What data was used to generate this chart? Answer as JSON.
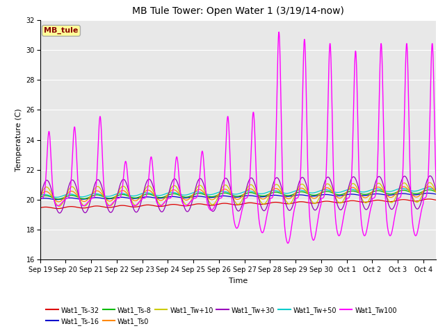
{
  "title": "MB Tule Tower: Open Water 1 (3/19/14-now)",
  "xlabel": "Time",
  "ylabel": "Temperature (C)",
  "ylim": [
    16,
    32
  ],
  "yticks": [
    16,
    18,
    20,
    22,
    24,
    26,
    28,
    30,
    32
  ],
  "xlim": [
    0,
    15.5
  ],
  "xtick_labels": [
    "Sep 19",
    "Sep 20",
    "Sep 21",
    "Sep 22",
    "Sep 23",
    "Sep 24",
    "Sep 25",
    "Sep 26",
    "Sep 27",
    "Sep 28",
    "Sep 29",
    "Sep 30",
    "Oct 1",
    "Oct 2",
    "Oct 3",
    "Oct 4"
  ],
  "bg_color": "#e8e8e8",
  "legend_box_color": "#ffff99",
  "legend_box_edge": "#aaaaaa",
  "annotation_text": "MB_tule",
  "annotation_color": "#880000",
  "series": [
    {
      "name": "Wat1_Ts-32",
      "color": "#dd0000"
    },
    {
      "name": "Wat1_Ts-16",
      "color": "#0000cc"
    },
    {
      "name": "Wat1_Ts-8",
      "color": "#00bb00"
    },
    {
      "name": "Wat1_Ts0",
      "color": "#ff8800"
    },
    {
      "name": "Wat1_Tw+10",
      "color": "#cccc00"
    },
    {
      "name": "Wat1_Tw+30",
      "color": "#9900bb"
    },
    {
      "name": "Wat1_Tw+50",
      "color": "#00cccc"
    },
    {
      "name": "Wat1_Tw100",
      "color": "#ff00ff"
    }
  ]
}
